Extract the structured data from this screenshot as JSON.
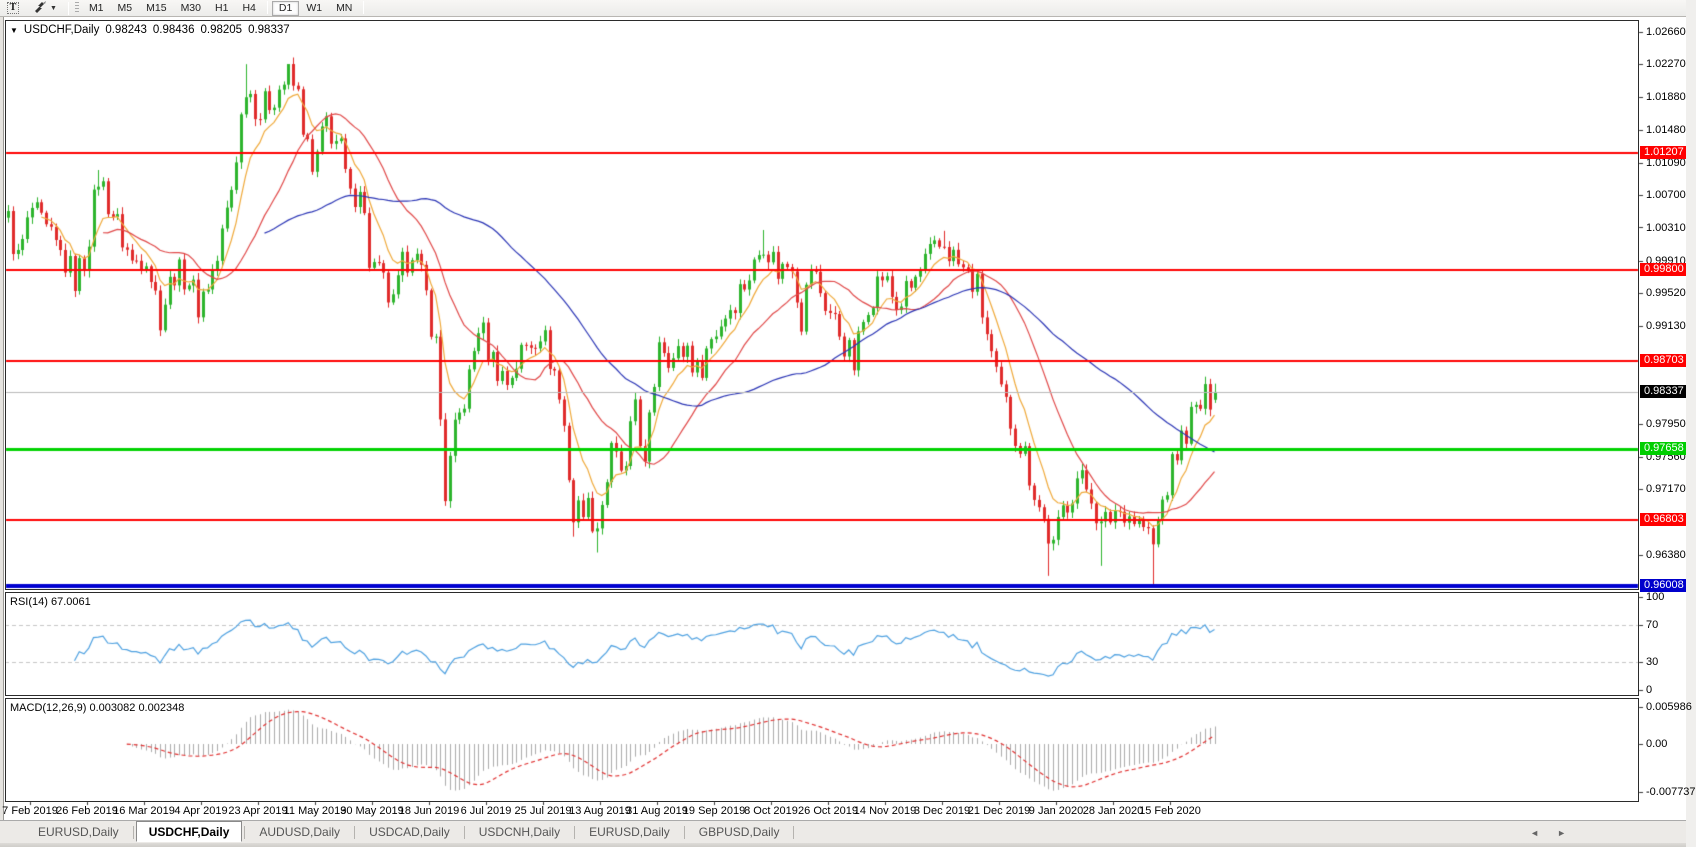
{
  "toolbar": {
    "text_tool_label": "T",
    "timeframes": [
      "M1",
      "M5",
      "M15",
      "M30",
      "H1",
      "H4",
      "D1",
      "W1",
      "MN"
    ],
    "active_timeframe": "D1"
  },
  "chart": {
    "symbol_timeframe": "USDCHF,Daily",
    "open": "0.98243",
    "high": "0.98436",
    "low": "0.98205",
    "close": "0.98337"
  },
  "rsi": {
    "name": "RSI(14)",
    "value": "67.0061",
    "axis": [
      "100",
      "70",
      "30",
      "0"
    ],
    "levels": [
      70,
      30
    ]
  },
  "macd": {
    "name": "MACD(12,26,9)",
    "value1": "0.003082",
    "value2": "0.002348",
    "axis": [
      {
        "v": 0.005986,
        "text": "0.005986"
      },
      {
        "v": 0,
        "text": "0.00"
      },
      {
        "v": -0.007737,
        "text": "-0.007737"
      }
    ]
  },
  "price_axis": {
    "ticks": [
      "1.02660",
      "1.02270",
      "1.01880",
      "1.01480",
      "1.01090",
      "1.00700",
      "1.00310",
      "0.99910",
      "0.99520",
      "0.99130",
      "0.97950",
      "0.97560",
      "0.97170",
      "0.96380"
    ]
  },
  "date_axis": [
    "7 Feb 2019",
    "26 Feb 2019",
    "16 Mar 2019",
    "4 Apr 2019",
    "23 Apr 2019",
    "11 May 2019",
    "30 May 2019",
    "18 Jun 2019",
    "6 Jul 2019",
    "25 Jul 2019",
    "13 Aug 2019",
    "31 Aug 2019",
    "19 Sep 2019",
    "8 Oct 2019",
    "26 Oct 2019",
    "14 Nov 2019",
    "3 Dec 2019",
    "21 Dec 2019",
    "9 Jan 2020",
    "28 Jan 2020",
    "15 Feb 2020"
  ],
  "tabs": {
    "items": [
      "EURUSD,Daily",
      "USDCHF,Daily",
      "AUDUSD,Daily",
      "USDCAD,Daily",
      "USDCNH,Daily",
      "EURUSD,Daily",
      "GBPUSD,Daily"
    ],
    "active_index": 1
  },
  "chart_data": {
    "type": "candlestick",
    "symbol": "USDCHF",
    "period": "Daily",
    "visible_range": [
      "7 Feb 2019",
      "15 Feb 2020"
    ],
    "price_range": [
      0.95972,
      1.028
    ],
    "last_candle": {
      "open": 0.98243,
      "high": 0.98436,
      "low": 0.98205,
      "close": 0.98337
    },
    "candle_count": 255,
    "colors": {
      "up": "#2db42d",
      "down": "#e02b2b",
      "rsi_line": "#4da0e0",
      "macd_hist": "#ababab",
      "macd_signal": "#e03030"
    },
    "close_waypoints": [
      [
        0,
        1.0038
      ],
      [
        2,
        0.9992
      ],
      [
        5,
        1.0052
      ],
      [
        8,
        1.0022
      ],
      [
        11,
        0.9998
      ],
      [
        14,
        0.997
      ],
      [
        16,
        0.9992
      ],
      [
        19,
        1.0092
      ],
      [
        22,
        1.0048
      ],
      [
        26,
        0.9988
      ],
      [
        29,
        0.9998
      ],
      [
        32,
        0.9926
      ],
      [
        35,
        0.998
      ],
      [
        38,
        0.9968
      ],
      [
        40,
        0.9938
      ],
      [
        44,
        0.9992
      ],
      [
        47,
        1.0078
      ],
      [
        50,
        1.0205
      ],
      [
        53,
        1.0168
      ],
      [
        56,
        1.0192
      ],
      [
        59,
        1.0212
      ],
      [
        61,
        1.0188
      ],
      [
        64,
        1.0092
      ],
      [
        67,
        1.0158
      ],
      [
        70,
        1.0122
      ],
      [
        72,
        1.0062
      ],
      [
        74,
        1.0088
      ],
      [
        76,
        0.9992
      ],
      [
        79,
        0.9962
      ],
      [
        81,
        0.9934
      ],
      [
        83,
        0.9982
      ],
      [
        85,
        1.001
      ],
      [
        88,
        0.9948
      ],
      [
        90,
        0.989
      ],
      [
        92,
        0.9712
      ],
      [
        94,
        0.9782
      ],
      [
        97,
        0.9848
      ],
      [
        99,
        0.9915
      ],
      [
        102,
        0.9872
      ],
      [
        105,
        0.9846
      ],
      [
        108,
        0.988
      ],
      [
        112,
        0.991
      ],
      [
        115,
        0.9858
      ],
      [
        117,
        0.9792
      ],
      [
        119,
        0.9682
      ],
      [
        121,
        0.9702
      ],
      [
        124,
        0.9675
      ],
      [
        127,
        0.9758
      ],
      [
        130,
        0.9732
      ],
      [
        132,
        0.9826
      ],
      [
        134,
        0.9738
      ],
      [
        137,
        0.9902
      ],
      [
        140,
        0.9872
      ],
      [
        143,
        0.9888
      ],
      [
        145,
        0.9856
      ],
      [
        148,
        0.9898
      ],
      [
        151,
        0.9928
      ],
      [
        154,
        0.9956
      ],
      [
        157,
        0.9984
      ],
      [
        159,
        1.0018
      ],
      [
        162,
        0.998
      ],
      [
        165,
        0.999
      ],
      [
        167,
        0.9922
      ],
      [
        169,
        0.9984
      ],
      [
        172,
        0.994
      ],
      [
        175,
        0.9906
      ],
      [
        178,
        0.9866
      ],
      [
        181,
        0.9944
      ],
      [
        184,
        0.9974
      ],
      [
        187,
        0.9936
      ],
      [
        190,
        0.9958
      ],
      [
        193,
        0.9988
      ],
      [
        197,
        1.0012
      ],
      [
        200,
        0.9986
      ],
      [
        204,
        0.9958
      ],
      [
        208,
        0.9846
      ],
      [
        211,
        0.98
      ],
      [
        214,
        0.9758
      ],
      [
        217,
        0.9696
      ],
      [
        220,
        0.9644
      ],
      [
        222,
        0.9692
      ],
      [
        225,
        0.973
      ],
      [
        228,
        0.9714
      ],
      [
        230,
        0.9668
      ],
      [
        233,
        0.9692
      ],
      [
        236,
        0.9686
      ],
      [
        239,
        0.9672
      ],
      [
        241,
        0.9648
      ],
      [
        243,
        0.9702
      ],
      [
        246,
        0.9762
      ],
      [
        249,
        0.9802
      ],
      [
        252,
        0.9824
      ],
      [
        254,
        0.98337
      ]
    ],
    "wick_spikes": [
      {
        "i": 19,
        "high": 1.01
      },
      {
        "i": 50,
        "high": 1.0227
      },
      {
        "i": 59,
        "high": 1.0226
      },
      {
        "i": 92,
        "low": 0.9697
      },
      {
        "i": 119,
        "low": 0.966
      },
      {
        "i": 124,
        "low": 0.9641
      },
      {
        "i": 159,
        "high": 1.0028
      },
      {
        "i": 197,
        "high": 1.0027
      },
      {
        "i": 219,
        "low": 0.9613
      },
      {
        "i": 230,
        "low": 0.9625
      },
      {
        "i": 241,
        "low": 0.9601
      },
      {
        "i": 252,
        "high": 0.9852
      },
      {
        "i": 254,
        "high": 0.98436,
        "low": 0.98205,
        "open": 0.98243
      }
    ],
    "moving_averages": [
      {
        "period": 8,
        "type": "ema",
        "color": "#efa93a"
      },
      {
        "period": 21,
        "type": "sma",
        "color": "#e04848"
      },
      {
        "period": 55,
        "type": "sma",
        "color": "#2b35b5"
      }
    ],
    "horizontal_lines": [
      {
        "price": 1.01207,
        "color": "#ff0000",
        "width": 2,
        "label": "1.01207",
        "label_bg": "#ff0000",
        "label_color": "#ffffff"
      },
      {
        "price": 0.998,
        "color": "#ff0000",
        "width": 2,
        "label": "0.99800",
        "label_bg": "#ff0000",
        "label_color": "#ffffff"
      },
      {
        "price": 0.98703,
        "color": "#ff0000",
        "width": 2,
        "label": "0.98703",
        "label_bg": "#ff0000",
        "label_color": "#ffffff"
      },
      {
        "price": 0.98337,
        "color": "#b8b8b8",
        "width": 1,
        "label": "0.98337",
        "label_bg": "#000000",
        "label_color": "#ffffff"
      },
      {
        "price": 0.97658,
        "color": "#00d200",
        "width": 3,
        "label": "0.97658",
        "label_bg": "#00ce00",
        "label_color": "#ffffff"
      },
      {
        "price": 0.96803,
        "color": "#ff0000",
        "width": 2,
        "label": "0.96803",
        "label_bg": "#ff0000",
        "label_color": "#ffffff"
      },
      {
        "price": 0.96008,
        "color": "#0000d0",
        "width": 4,
        "label": "0.96008",
        "label_bg": "#0000cc",
        "label_color": "#ffffff"
      }
    ],
    "rsi_last": 67.0061,
    "macd_last": [
      0.003082,
      0.002348
    ],
    "macd_axis_range": [
      -0.007737,
      0.005986
    ]
  }
}
